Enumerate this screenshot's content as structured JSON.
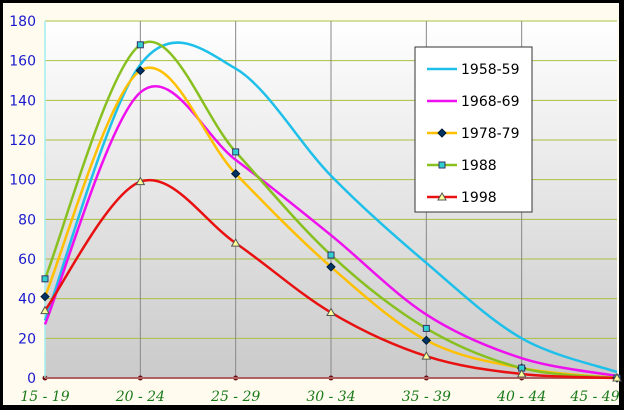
{
  "chart_data": {
    "type": "line",
    "title": "",
    "xlabel": "",
    "ylabel": "",
    "categories": [
      "15 - 19",
      "20 - 24",
      "25 - 29",
      "30 - 34",
      "35 - 39",
      "40 - 44",
      "45 - 49"
    ],
    "ylim": [
      0,
      180
    ],
    "yticks": [
      0,
      20,
      40,
      60,
      80,
      100,
      120,
      140,
      160,
      180
    ],
    "grid": true,
    "legend_position": "top-right",
    "series": [
      {
        "name": "1958-59",
        "color": "#1ec0ea",
        "marker": "none",
        "values": [
          29,
          158,
          156,
          102,
          58,
          20,
          3
        ]
      },
      {
        "name": "1968-69",
        "color": "#ee10ee",
        "marker": "none",
        "values": [
          27,
          144,
          110,
          72,
          32,
          10,
          1
        ]
      },
      {
        "name": "1978-79",
        "color": "#ffc000",
        "marker": "diamond",
        "marker_color": "#003366",
        "values": [
          41,
          155,
          103,
          56,
          19,
          5,
          0
        ]
      },
      {
        "name": "1988",
        "color": "#88c020",
        "marker": "square",
        "marker_color": "#30d0d0",
        "values": [
          50,
          168,
          114,
          62,
          25,
          5,
          0
        ]
      },
      {
        "name": "1998",
        "color": "#e81010",
        "marker": "triangle",
        "marker_color": "#ffff99",
        "values": [
          34,
          99,
          68,
          33,
          11,
          2,
          0
        ]
      }
    ]
  }
}
